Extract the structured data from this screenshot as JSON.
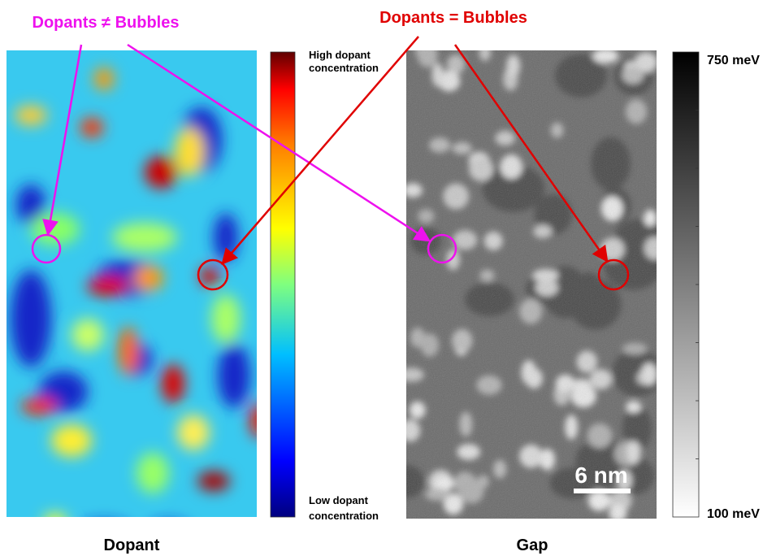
{
  "annotations": {
    "mismatch": "Dopants ≠ Bubbles",
    "match": "Dopants = Bubbles"
  },
  "panels": [
    {
      "label": "Dopant",
      "colorbar": {
        "top": [
          "High dopant",
          "concentration"
        ],
        "bottom": [
          "Low dopant",
          "concentration"
        ]
      }
    },
    {
      "label": "Gap",
      "colorbar": {
        "top": "750 meV",
        "bottom": "100 meV"
      },
      "scale_bar": "6 nm"
    }
  ]
}
